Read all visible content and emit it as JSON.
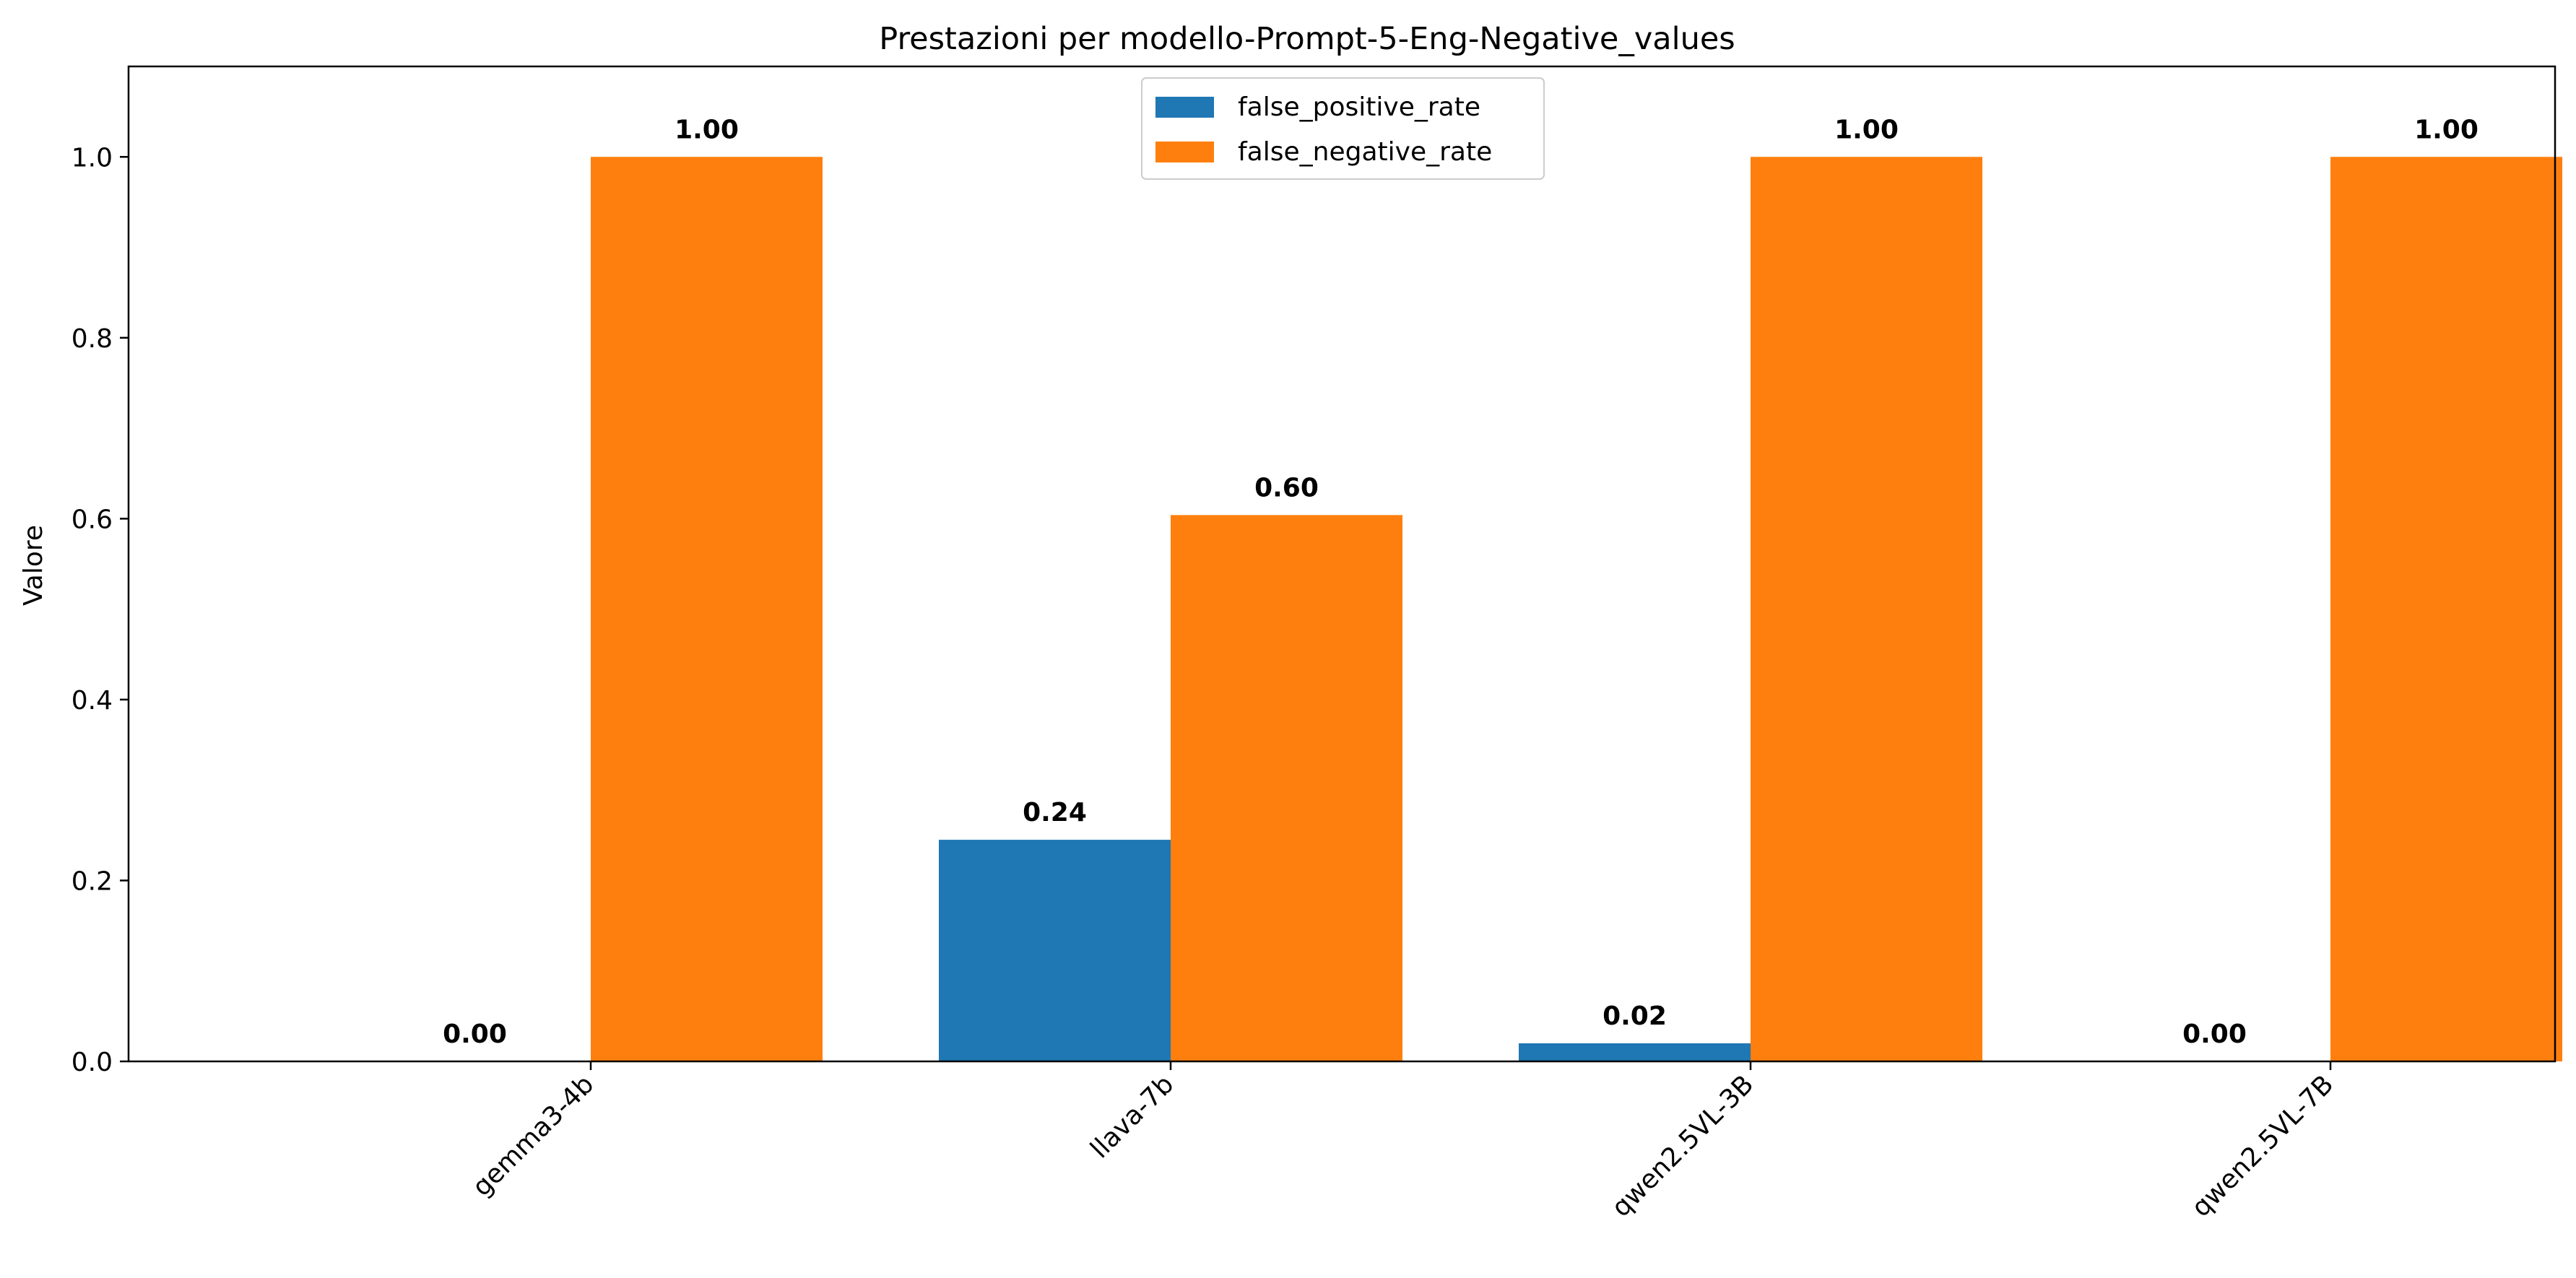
{
  "chart_data": {
    "type": "bar",
    "title": "Prestazioni per modello-Prompt-5-Eng-Negative_values",
    "xlabel": "",
    "ylabel": "Valore",
    "categories": [
      "gemma3-4b",
      "llava-7b",
      "qwen2.5VL-3B",
      "qwen2.5VL-7B"
    ],
    "series": [
      {
        "name": "false_positive_rate",
        "color": "#1f77b4",
        "values": [
          0.0,
          0.245,
          0.02,
          0.0
        ],
        "labels": [
          "0.00",
          "0.24",
          "0.02",
          "0.00"
        ]
      },
      {
        "name": "false_negative_rate",
        "color": "#ff7f0e",
        "values": [
          1.0,
          0.604,
          1.0,
          1.0
        ],
        "labels": [
          "1.00",
          "0.60",
          "1.00",
          "1.00"
        ]
      }
    ],
    "ylim": [
      0,
      1.1
    ],
    "yticks": [
      "0.0",
      "0.2",
      "0.4",
      "0.6",
      "0.8",
      "1.0"
    ],
    "grid": false,
    "legend_position": "top-center",
    "tick_rotation_degrees": 45
  }
}
